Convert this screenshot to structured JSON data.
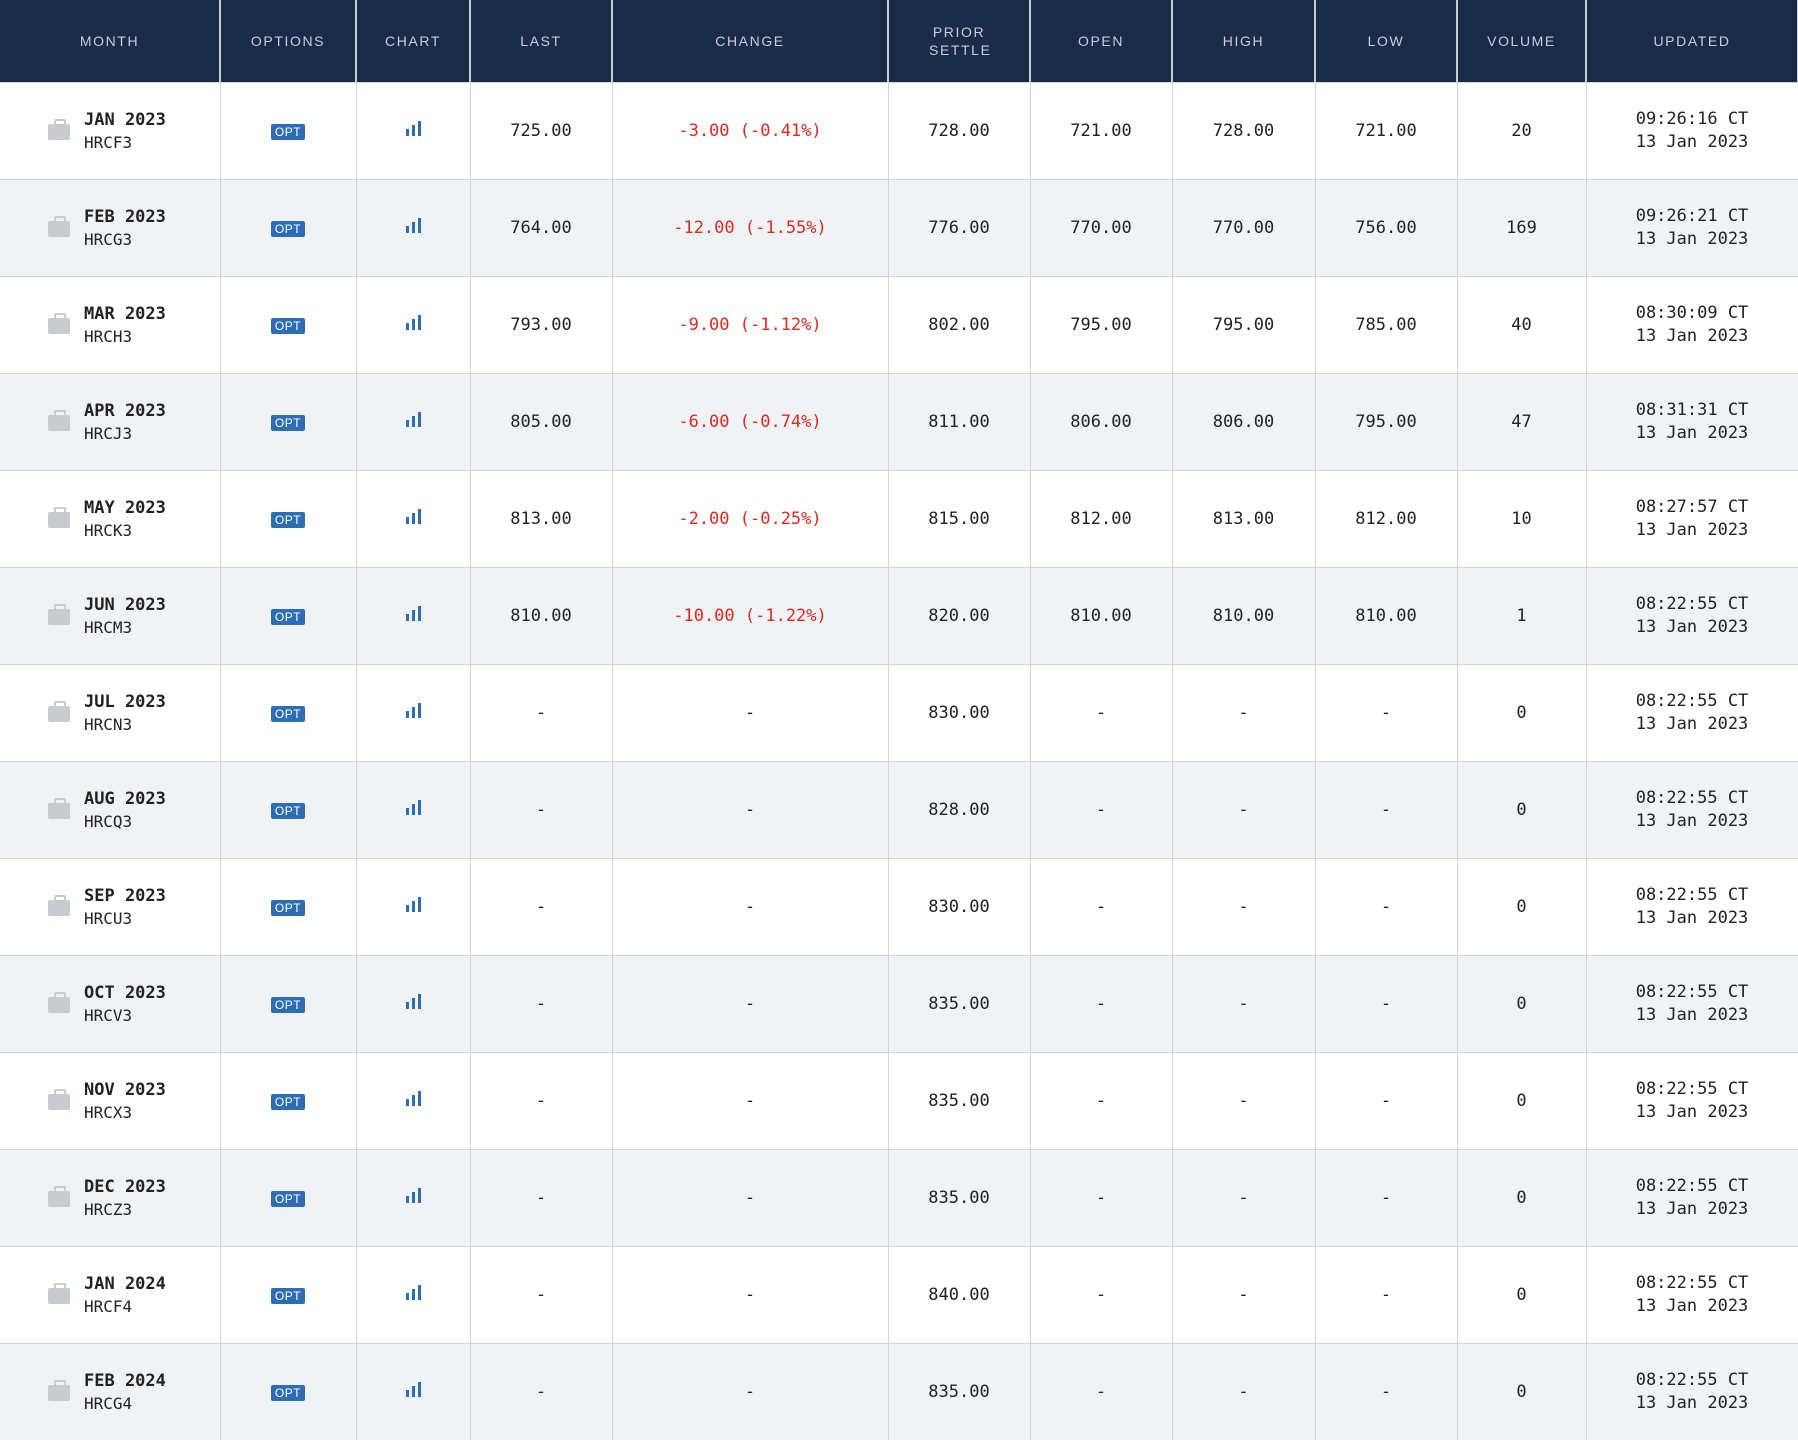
{
  "headers": [
    "MONTH",
    "OPTIONS",
    "CHART",
    "LAST",
    "CHANGE",
    "PRIOR SETTLE",
    "OPEN",
    "HIGH",
    "LOW",
    "VOLUME",
    "UPDATED"
  ],
  "colors": {
    "header_bg": "#1a2b4a",
    "negative": "#e0291f",
    "accent": "#2e6db4"
  },
  "opt_label": "OPT",
  "rows": [
    {
      "month": "JAN 2023",
      "code": "HRCF3",
      "last": "725.00",
      "change": "-3.00 (-0.41%)",
      "prior": "728.00",
      "open": "721.00",
      "high": "728.00",
      "low": "721.00",
      "volume": "20",
      "time": "09:26:16 CT",
      "date": "13 Jan 2023"
    },
    {
      "month": "FEB 2023",
      "code": "HRCG3",
      "last": "764.00",
      "change": "-12.00 (-1.55%)",
      "prior": "776.00",
      "open": "770.00",
      "high": "770.00",
      "low": "756.00",
      "volume": "169",
      "time": "09:26:21 CT",
      "date": "13 Jan 2023"
    },
    {
      "month": "MAR 2023",
      "code": "HRCH3",
      "last": "793.00",
      "change": "-9.00 (-1.12%)",
      "prior": "802.00",
      "open": "795.00",
      "high": "795.00",
      "low": "785.00",
      "volume": "40",
      "time": "08:30:09 CT",
      "date": "13 Jan 2023"
    },
    {
      "month": "APR 2023",
      "code": "HRCJ3",
      "last": "805.00",
      "change": "-6.00 (-0.74%)",
      "prior": "811.00",
      "open": "806.00",
      "high": "806.00",
      "low": "795.00",
      "volume": "47",
      "time": "08:31:31 CT",
      "date": "13 Jan 2023"
    },
    {
      "month": "MAY 2023",
      "code": "HRCK3",
      "last": "813.00",
      "change": "-2.00 (-0.25%)",
      "prior": "815.00",
      "open": "812.00",
      "high": "813.00",
      "low": "812.00",
      "volume": "10",
      "time": "08:27:57 CT",
      "date": "13 Jan 2023"
    },
    {
      "month": "JUN 2023",
      "code": "HRCM3",
      "last": "810.00",
      "change": "-10.00 (-1.22%)",
      "prior": "820.00",
      "open": "810.00",
      "high": "810.00",
      "low": "810.00",
      "volume": "1",
      "time": "08:22:55 CT",
      "date": "13 Jan 2023"
    },
    {
      "month": "JUL 2023",
      "code": "HRCN3",
      "last": "-",
      "change": "-",
      "prior": "830.00",
      "open": "-",
      "high": "-",
      "low": "-",
      "volume": "0",
      "time": "08:22:55 CT",
      "date": "13 Jan 2023"
    },
    {
      "month": "AUG 2023",
      "code": "HRCQ3",
      "last": "-",
      "change": "-",
      "prior": "828.00",
      "open": "-",
      "high": "-",
      "low": "-",
      "volume": "0",
      "time": "08:22:55 CT",
      "date": "13 Jan 2023"
    },
    {
      "month": "SEP 2023",
      "code": "HRCU3",
      "last": "-",
      "change": "-",
      "prior": "830.00",
      "open": "-",
      "high": "-",
      "low": "-",
      "volume": "0",
      "time": "08:22:55 CT",
      "date": "13 Jan 2023"
    },
    {
      "month": "OCT 2023",
      "code": "HRCV3",
      "last": "-",
      "change": "-",
      "prior": "835.00",
      "open": "-",
      "high": "-",
      "low": "-",
      "volume": "0",
      "time": "08:22:55 CT",
      "date": "13 Jan 2023"
    },
    {
      "month": "NOV 2023",
      "code": "HRCX3",
      "last": "-",
      "change": "-",
      "prior": "835.00",
      "open": "-",
      "high": "-",
      "low": "-",
      "volume": "0",
      "time": "08:22:55 CT",
      "date": "13 Jan 2023"
    },
    {
      "month": "DEC 2023",
      "code": "HRCZ3",
      "last": "-",
      "change": "-",
      "prior": "835.00",
      "open": "-",
      "high": "-",
      "low": "-",
      "volume": "0",
      "time": "08:22:55 CT",
      "date": "13 Jan 2023"
    },
    {
      "month": "JAN 2024",
      "code": "HRCF4",
      "last": "-",
      "change": "-",
      "prior": "840.00",
      "open": "-",
      "high": "-",
      "low": "-",
      "volume": "0",
      "time": "08:22:55 CT",
      "date": "13 Jan 2023"
    },
    {
      "month": "FEB 2024",
      "code": "HRCG4",
      "last": "-",
      "change": "-",
      "prior": "835.00",
      "open": "-",
      "high": "-",
      "low": "-",
      "volume": "0",
      "time": "08:22:55 CT",
      "date": "13 Jan 2023"
    }
  ]
}
